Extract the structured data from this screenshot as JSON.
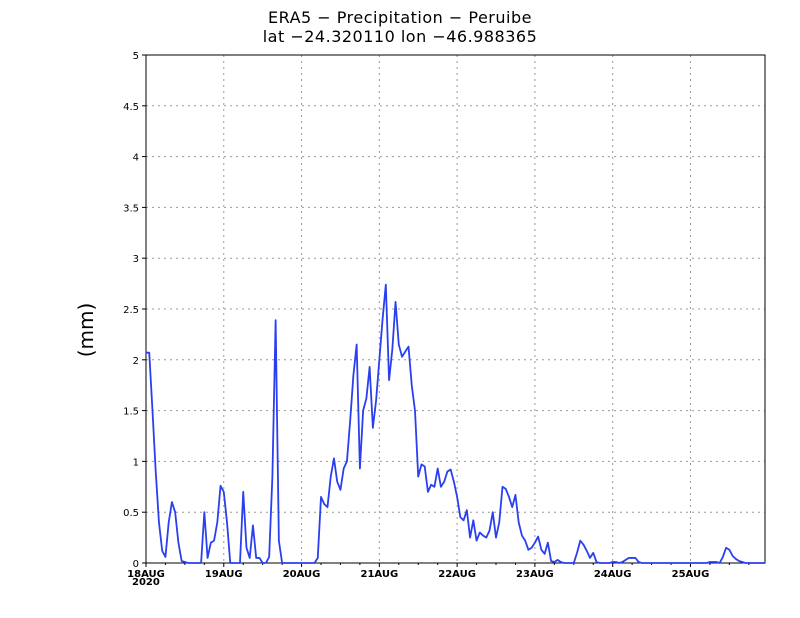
{
  "chart_data": {
    "type": "line",
    "title": "ERA5 − Precipitation − Peruibe",
    "subtitle": "lat −24.320110  lon −46.988365",
    "xlabel": "",
    "ylabel": "(mm)",
    "year_label": "2020",
    "xlim": [
      0,
      191
    ],
    "ylim": [
      0,
      5
    ],
    "grid": true,
    "x_tick_labels": [
      {
        "x": 0,
        "label": "18AUG"
      },
      {
        "x": 24,
        "label": "19AUG"
      },
      {
        "x": 48,
        "label": "20AUG"
      },
      {
        "x": 72,
        "label": "21AUG"
      },
      {
        "x": 96,
        "label": "22AUG"
      },
      {
        "x": 120,
        "label": "23AUG"
      },
      {
        "x": 144,
        "label": "24AUG"
      },
      {
        "x": 168,
        "label": "25AUG"
      }
    ],
    "y_ticks": [
      {
        "v": 0,
        "label": "0"
      },
      {
        "v": 0.5,
        "label": "0.5"
      },
      {
        "v": 1,
        "label": "1"
      },
      {
        "v": 1.5,
        "label": "1.5"
      },
      {
        "v": 2,
        "label": "2"
      },
      {
        "v": 2.5,
        "label": "2.5"
      },
      {
        "v": 3,
        "label": "3"
      },
      {
        "v": 3.5,
        "label": "3.5"
      },
      {
        "v": 4,
        "label": "4"
      },
      {
        "v": 4.5,
        "label": "4.5"
      },
      {
        "v": 5,
        "label": "5"
      }
    ],
    "series": [
      {
        "name": "precipitation",
        "color": "#2a3ff0",
        "points": [
          [
            0,
            2.07
          ],
          [
            1,
            2.07
          ],
          [
            2,
            1.5
          ],
          [
            3,
            0.9
          ],
          [
            4,
            0.4
          ],
          [
            5,
            0.12
          ],
          [
            6,
            0.06
          ],
          [
            7,
            0.4
          ],
          [
            8,
            0.6
          ],
          [
            9,
            0.5
          ],
          [
            10,
            0.2
          ],
          [
            11,
            0.02
          ],
          [
            12,
            0.01
          ],
          [
            13,
            0
          ],
          [
            14,
            0
          ],
          [
            15,
            0
          ],
          [
            16,
            0
          ],
          [
            17,
            0
          ],
          [
            18,
            0.5
          ],
          [
            19,
            0.05
          ],
          [
            20,
            0.2
          ],
          [
            21,
            0.22
          ],
          [
            22,
            0.4
          ],
          [
            23,
            0.76
          ],
          [
            24,
            0.7
          ],
          [
            25,
            0.4
          ],
          [
            26,
            0
          ],
          [
            27,
            0
          ],
          [
            28,
            0
          ],
          [
            29,
            0
          ],
          [
            30,
            0.7
          ],
          [
            31,
            0.15
          ],
          [
            32,
            0.05
          ],
          [
            33,
            0.37
          ],
          [
            34,
            0.05
          ],
          [
            35,
            0.05
          ],
          [
            36,
            0
          ],
          [
            37,
            0
          ],
          [
            38,
            0.06
          ],
          [
            39,
            0.85
          ],
          [
            40,
            2.39
          ],
          [
            41,
            0.22
          ],
          [
            42,
            0
          ],
          [
            43,
            0
          ],
          [
            44,
            0
          ],
          [
            45,
            0
          ],
          [
            46,
            0
          ],
          [
            47,
            0
          ],
          [
            48,
            0
          ],
          [
            49,
            0
          ],
          [
            50,
            0
          ],
          [
            51,
            0
          ],
          [
            52,
            0
          ],
          [
            53,
            0.05
          ],
          [
            54,
            0.65
          ],
          [
            55,
            0.58
          ],
          [
            56,
            0.55
          ],
          [
            57,
            0.85
          ],
          [
            58,
            1.03
          ],
          [
            59,
            0.8
          ],
          [
            60,
            0.72
          ],
          [
            61,
            0.93
          ],
          [
            62,
            1.0
          ],
          [
            63,
            1.4
          ],
          [
            64,
            1.85
          ],
          [
            65,
            2.15
          ],
          [
            66,
            0.93
          ],
          [
            67,
            1.5
          ],
          [
            68,
            1.62
          ],
          [
            69,
            1.93
          ],
          [
            70,
            1.33
          ],
          [
            71,
            1.6
          ],
          [
            72,
            2.0
          ],
          [
            73,
            2.4
          ],
          [
            74,
            2.74
          ],
          [
            75,
            1.8
          ],
          [
            76,
            2.1
          ],
          [
            77,
            2.57
          ],
          [
            78,
            2.15
          ],
          [
            79,
            2.03
          ],
          [
            80,
            2.08
          ],
          [
            81,
            2.13
          ],
          [
            82,
            1.75
          ],
          [
            83,
            1.5
          ],
          [
            84,
            0.85
          ],
          [
            85,
            0.97
          ],
          [
            86,
            0.95
          ],
          [
            87,
            0.7
          ],
          [
            88,
            0.77
          ],
          [
            89,
            0.75
          ],
          [
            90,
            0.93
          ],
          [
            91,
            0.75
          ],
          [
            92,
            0.8
          ],
          [
            93,
            0.9
          ],
          [
            94,
            0.92
          ],
          [
            95,
            0.8
          ],
          [
            96,
            0.65
          ],
          [
            97,
            0.45
          ],
          [
            98,
            0.42
          ],
          [
            99,
            0.52
          ],
          [
            100,
            0.25
          ],
          [
            101,
            0.42
          ],
          [
            102,
            0.22
          ],
          [
            103,
            0.3
          ],
          [
            104,
            0.27
          ],
          [
            105,
            0.25
          ],
          [
            106,
            0.32
          ],
          [
            107,
            0.5
          ],
          [
            108,
            0.25
          ],
          [
            109,
            0.4
          ],
          [
            110,
            0.75
          ],
          [
            111,
            0.73
          ],
          [
            112,
            0.65
          ],
          [
            113,
            0.55
          ],
          [
            114,
            0.67
          ],
          [
            115,
            0.4
          ],
          [
            116,
            0.27
          ],
          [
            117,
            0.22
          ],
          [
            118,
            0.13
          ],
          [
            119,
            0.15
          ],
          [
            120,
            0.2
          ],
          [
            121,
            0.26
          ],
          [
            122,
            0.13
          ],
          [
            123,
            0.09
          ],
          [
            124,
            0.2
          ],
          [
            125,
            0.02
          ],
          [
            126,
            0.01
          ],
          [
            127,
            0.03
          ],
          [
            128,
            0.01
          ],
          [
            129,
            0
          ],
          [
            130,
            0
          ],
          [
            131,
            0
          ],
          [
            132,
            0
          ],
          [
            133,
            0.1
          ],
          [
            134,
            0.22
          ],
          [
            135,
            0.18
          ],
          [
            136,
            0.12
          ],
          [
            137,
            0.05
          ],
          [
            138,
            0.1
          ],
          [
            139,
            0.01
          ],
          [
            140,
            0
          ],
          [
            141,
            0
          ],
          [
            142,
            0
          ],
          [
            143,
            0
          ],
          [
            144,
            0.01
          ],
          [
            145,
            0.01
          ],
          [
            146,
            0
          ],
          [
            147,
            0.01
          ],
          [
            148,
            0.03
          ],
          [
            149,
            0.05
          ],
          [
            150,
            0.05
          ],
          [
            151,
            0.05
          ],
          [
            152,
            0.01
          ],
          [
            153,
            0
          ],
          [
            154,
            0
          ],
          [
            155,
            0
          ],
          [
            156,
            0
          ],
          [
            157,
            0
          ],
          [
            158,
            0
          ],
          [
            159,
            0
          ],
          [
            160,
            0
          ],
          [
            161,
            0
          ],
          [
            162,
            0
          ],
          [
            163,
            0
          ],
          [
            164,
            0
          ],
          [
            165,
            0
          ],
          [
            166,
            0
          ],
          [
            167,
            0
          ],
          [
            168,
            0
          ],
          [
            169,
            0
          ],
          [
            170,
            0
          ],
          [
            171,
            0
          ],
          [
            172,
            0
          ],
          [
            173,
            0
          ],
          [
            174,
            0.01
          ],
          [
            175,
            0.01
          ],
          [
            176,
            0.01
          ],
          [
            177,
            0
          ],
          [
            178,
            0.06
          ],
          [
            179,
            0.15
          ],
          [
            180,
            0.13
          ],
          [
            181,
            0.07
          ],
          [
            182,
            0.04
          ],
          [
            183,
            0.02
          ],
          [
            184,
            0.01
          ],
          [
            185,
            0
          ],
          [
            186,
            0
          ],
          [
            187,
            0
          ],
          [
            188,
            0
          ],
          [
            189,
            0
          ],
          [
            190,
            0
          ],
          [
            191,
            0
          ]
        ]
      }
    ]
  }
}
